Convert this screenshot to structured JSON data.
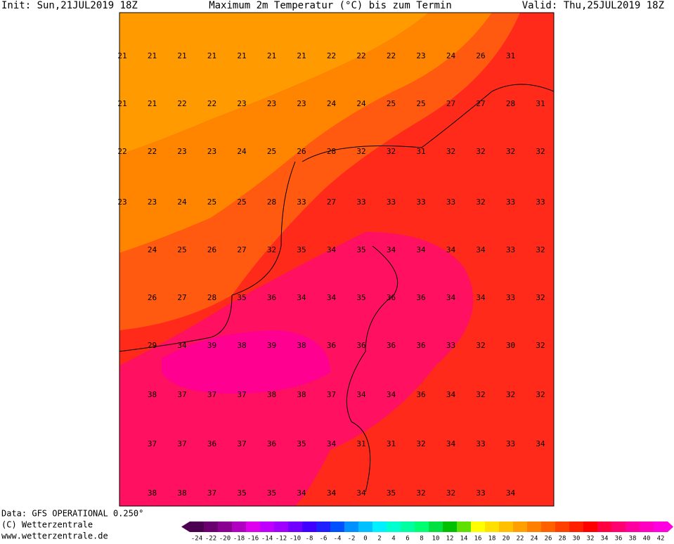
{
  "header": {
    "init": "Init: Sun,21JUL2019 18Z",
    "title": "Maximum 2m Temperatur (°C) bis zum Termin",
    "valid": "Valid: Thu,25JUL2019 18Z"
  },
  "map": {
    "rows": [
      [
        21,
        21,
        21,
        21,
        21,
        21,
        21,
        22,
        22,
        22,
        23,
        24,
        26,
        31,
        null
      ],
      [
        21,
        21,
        22,
        22,
        23,
        23,
        23,
        24,
        24,
        25,
        25,
        27,
        27,
        28,
        31
      ],
      [
        22,
        22,
        23,
        23,
        24,
        25,
        26,
        28,
        32,
        32,
        31,
        32,
        32,
        32,
        32
      ],
      [
        23,
        23,
        24,
        25,
        25,
        28,
        33,
        27,
        33,
        33,
        33,
        33,
        32,
        33,
        33
      ],
      [
        null,
        24,
        25,
        26,
        27,
        32,
        35,
        34,
        35,
        34,
        34,
        34,
        34,
        33,
        32
      ],
      [
        null,
        26,
        27,
        28,
        35,
        36,
        34,
        34,
        35,
        36,
        36,
        34,
        34,
        33,
        32
      ],
      [
        null,
        29,
        34,
        39,
        38,
        39,
        38,
        36,
        36,
        36,
        36,
        33,
        32,
        30,
        32
      ],
      [
        null,
        38,
        37,
        37,
        37,
        38,
        38,
        37,
        34,
        34,
        36,
        34,
        32,
        32,
        32
      ],
      [
        null,
        37,
        37,
        36,
        37,
        36,
        35,
        34,
        31,
        31,
        32,
        34,
        33,
        33,
        34
      ],
      [
        null,
        38,
        38,
        37,
        35,
        35,
        34,
        34,
        34,
        35,
        32,
        32,
        33,
        34,
        null
      ]
    ]
  },
  "footer": {
    "source": "Data: GFS OPERATIONAL 0.250°",
    "copyright": "(C) Wetterzentrale",
    "url": "www.wetterzentrale.de"
  },
  "colorbar": {
    "labels": [
      -24,
      -22,
      -20,
      -18,
      -16,
      -14,
      -12,
      -10,
      -8,
      -6,
      -4,
      -2,
      0,
      2,
      4,
      6,
      8,
      10,
      12,
      14,
      16,
      18,
      20,
      22,
      24,
      26,
      28,
      30,
      32,
      34,
      36,
      38,
      40,
      42
    ],
    "colors": [
      "#4b0050",
      "#6a0070",
      "#8a0090",
      "#b000c0",
      "#e000f0",
      "#c000ff",
      "#a000ff",
      "#7000ff",
      "#4000ff",
      "#2020ff",
      "#0050ff",
      "#0090ff",
      "#00c0ff",
      "#00f0ff",
      "#00ffd0",
      "#00ffa0",
      "#00ff70",
      "#00e040",
      "#00c000",
      "#60e000",
      "#ffff00",
      "#ffe000",
      "#ffc000",
      "#ffa000",
      "#ff8000",
      "#ff6000",
      "#ff4000",
      "#ff2000",
      "#ff0000",
      "#ff0040",
      "#ff0070",
      "#ff00a0",
      "#ff00c0",
      "#ff00e0"
    ]
  }
}
